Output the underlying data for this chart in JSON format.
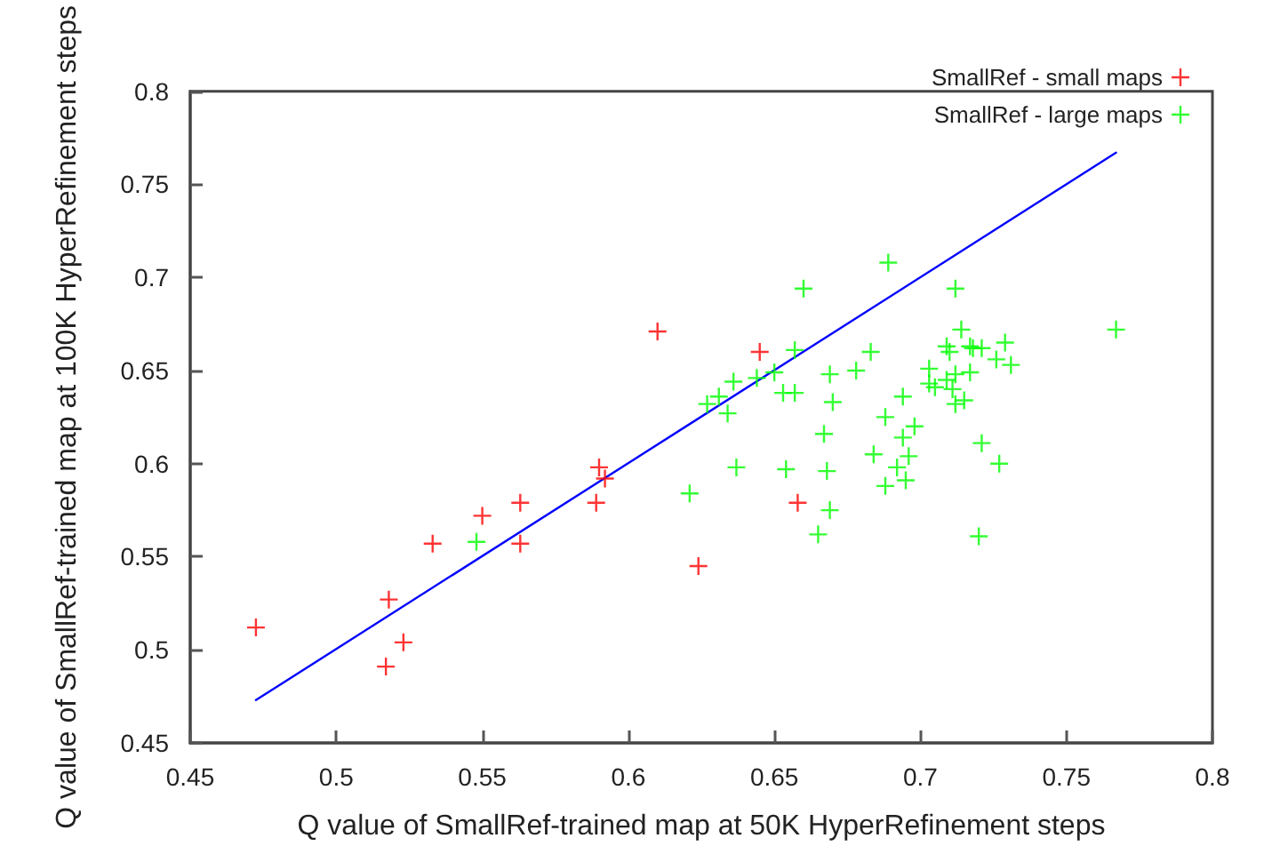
{
  "chart_data": {
    "type": "scatter",
    "xlabel": "Q value of SmallRef-trained map at 50K HyperRefinement steps",
    "ylabel": "Q value of SmallRef-trained map at 100K HyperRefinement steps",
    "xlim": [
      0.45,
      0.8
    ],
    "ylim": [
      0.45,
      0.8
    ],
    "xticks": [
      0.45,
      0.5,
      0.55,
      0.6,
      0.65,
      0.7,
      0.75,
      0.8
    ],
    "yticks": [
      0.45,
      0.5,
      0.55,
      0.6,
      0.65,
      0.7,
      0.75,
      0.8
    ],
    "grid": false,
    "legend": "top right",
    "marker": "cross",
    "series": [
      {
        "name": "SmallRef - small maps",
        "color": "#ff0000",
        "x": [
          0.4725,
          0.518,
          0.523,
          0.517,
          0.533,
          0.55,
          0.563,
          0.563,
          0.59,
          0.592,
          0.589,
          0.61,
          0.645,
          0.658,
          0.624
        ],
        "values": [
          0.512,
          0.527,
          0.504,
          0.491,
          0.557,
          0.572,
          0.579,
          0.557,
          0.598,
          0.592,
          0.579,
          0.671,
          0.66,
          0.579,
          0.545
        ]
      },
      {
        "name": "SmallRef - large maps",
        "color": "#00ff00",
        "x": [
          0.548,
          0.689,
          0.66,
          0.712,
          0.767,
          0.714,
          0.657,
          0.683,
          0.709,
          0.71,
          0.717,
          0.718,
          0.721,
          0.729,
          0.726,
          0.731,
          0.65,
          0.644,
          0.636,
          0.631,
          0.627,
          0.634,
          0.653,
          0.657,
          0.669,
          0.678,
          0.67,
          0.703,
          0.712,
          0.717,
          0.703,
          0.705,
          0.709,
          0.711,
          0.712,
          0.715,
          0.694,
          0.688,
          0.698,
          0.694,
          0.667,
          0.721,
          0.727,
          0.684,
          0.696,
          0.692,
          0.688,
          0.695,
          0.637,
          0.654,
          0.668,
          0.621,
          0.669,
          0.665,
          0.72
        ],
        "values": [
          0.558,
          0.708,
          0.694,
          0.694,
          0.672,
          0.672,
          0.661,
          0.66,
          0.663,
          0.66,
          0.663,
          0.662,
          0.662,
          0.665,
          0.656,
          0.653,
          0.649,
          0.646,
          0.644,
          0.636,
          0.632,
          0.627,
          0.638,
          0.638,
          0.648,
          0.65,
          0.633,
          0.651,
          0.648,
          0.649,
          0.643,
          0.641,
          0.645,
          0.64,
          0.632,
          0.634,
          0.636,
          0.625,
          0.62,
          0.614,
          0.616,
          0.611,
          0.6,
          0.605,
          0.604,
          0.598,
          0.588,
          0.591,
          0.598,
          0.597,
          0.596,
          0.584,
          0.575,
          0.562,
          0.561
        ]
      },
      {
        "type": "line",
        "color": "#0000ff",
        "x": [
          0.4725,
          0.767
        ],
        "values": [
          0.473,
          0.767
        ],
        "marker": "none"
      }
    ]
  }
}
